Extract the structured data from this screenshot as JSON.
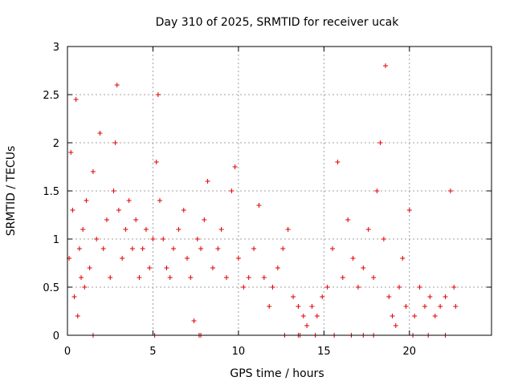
{
  "chart_data": {
    "type": "scatter",
    "title": "Day 310 of 2025, SRMTID for receiver ucak",
    "xlabel": "GPS time / hours",
    "ylabel": "SRMTID / TECUs",
    "xlim": [
      0,
      24.8
    ],
    "ylim": [
      0,
      3
    ],
    "xticks": [
      0,
      5,
      10,
      15,
      20
    ],
    "yticks": [
      0,
      0.5,
      1,
      1.5,
      2,
      2.5,
      3
    ],
    "grid": true,
    "marker": "+",
    "color": "#e00000",
    "series": [
      {
        "name": "SRMTID",
        "x": [
          0.1,
          0.2,
          0.3,
          0.4,
          0.5,
          0.6,
          0.7,
          0.8,
          0.9,
          1.0,
          1.1,
          1.3,
          1.5,
          1.7,
          1.9,
          2.1,
          2.3,
          2.5,
          2.7,
          2.8,
          2.9,
          3.0,
          3.2,
          3.4,
          3.6,
          3.8,
          4.0,
          4.2,
          4.4,
          4.6,
          4.8,
          5.0,
          5.2,
          5.3,
          5.4,
          5.6,
          5.8,
          6.0,
          6.2,
          6.5,
          6.8,
          7.0,
          7.2,
          7.4,
          7.6,
          7.8,
          8.0,
          8.2,
          8.5,
          8.8,
          9.0,
          9.3,
          9.6,
          9.8,
          10.0,
          10.3,
          10.6,
          10.9,
          11.2,
          11.5,
          11.8,
          12.0,
          12.3,
          12.6,
          12.9,
          13.2,
          13.5,
          13.8,
          14.0,
          14.3,
          14.6,
          14.9,
          15.2,
          15.5,
          15.8,
          16.1,
          16.4,
          16.7,
          17.0,
          17.3,
          17.6,
          17.9,
          18.1,
          18.3,
          18.5,
          18.6,
          18.8,
          19.0,
          19.2,
          19.4,
          19.6,
          19.8,
          20.0,
          20.3,
          20.6,
          20.9,
          21.2,
          21.5,
          21.8,
          22.1,
          22.4,
          22.6,
          22.7
        ],
        "values": [
          0.8,
          1.9,
          1.3,
          0.4,
          2.45,
          0.2,
          0.9,
          0.6,
          1.1,
          0.5,
          1.4,
          0.7,
          1.7,
          1.0,
          2.1,
          0.9,
          1.2,
          0.6,
          1.5,
          2.0,
          2.6,
          1.3,
          0.8,
          1.1,
          1.4,
          0.9,
          1.2,
          0.6,
          0.9,
          1.1,
          0.7,
          1.0,
          1.8,
          2.5,
          1.4,
          1.0,
          0.7,
          0.6,
          0.9,
          1.1,
          1.3,
          0.8,
          0.6,
          0.15,
          1.0,
          0.9,
          1.2,
          1.6,
          0.7,
          0.9,
          1.1,
          0.6,
          1.5,
          1.75,
          0.8,
          0.5,
          0.6,
          0.9,
          1.35,
          0.6,
          0.3,
          0.5,
          0.7,
          0.9,
          1.1,
          0.4,
          0.3,
          0.2,
          0.1,
          0.3,
          0.2,
          0.4,
          0.5,
          0.9,
          1.8,
          0.6,
          1.2,
          0.8,
          0.5,
          0.7,
          1.1,
          0.6,
          1.5,
          2.0,
          1.0,
          2.8,
          0.4,
          0.2,
          0.1,
          0.5,
          0.8,
          0.3,
          1.3,
          0.2,
          0.5,
          0.3,
          0.4,
          0.2,
          0.3,
          0.4,
          1.5,
          0.5,
          0.3
        ]
      },
      {
        "name": "markers at zero",
        "x": [
          1.5,
          5.1,
          7.7,
          7.8,
          12.7,
          13.5,
          13.6,
          14.5,
          15.6,
          16.6,
          17.3,
          17.9,
          20.2,
          21.1,
          22.1
        ],
        "values": [
          0,
          0,
          0,
          0,
          0,
          0,
          0,
          0,
          0,
          0,
          0,
          0,
          0,
          0,
          0
        ]
      }
    ]
  }
}
